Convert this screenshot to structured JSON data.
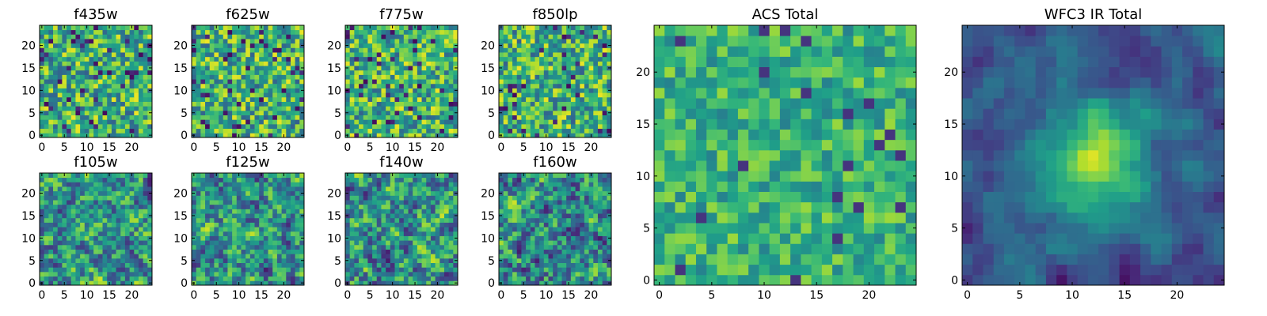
{
  "chart_data": [
    {
      "type": "heatmap",
      "title": "f435w",
      "colormap": "viridis",
      "grid": false,
      "xlim": [
        0,
        24
      ],
      "ylim": [
        0,
        24
      ],
      "x_ticks": [
        0,
        5,
        10,
        15,
        20
      ],
      "y_ticks": [
        0,
        5,
        10,
        15,
        20
      ],
      "x_tick_labels": [
        "0",
        "5",
        "10",
        "15",
        "20"
      ],
      "y_tick_labels": [
        "0",
        "5",
        "10",
        "15",
        "20"
      ],
      "pattern": "noise",
      "seed": 11,
      "contrast": 0.95
    },
    {
      "type": "heatmap",
      "title": "f625w",
      "colormap": "viridis",
      "grid": false,
      "xlim": [
        0,
        24
      ],
      "ylim": [
        0,
        24
      ],
      "x_ticks": [
        0,
        5,
        10,
        15,
        20
      ],
      "y_ticks": [
        0,
        5,
        10,
        15,
        20
      ],
      "x_tick_labels": [
        "0",
        "5",
        "10",
        "15",
        "20"
      ],
      "y_tick_labels": [
        "0",
        "5",
        "10",
        "15",
        "20"
      ],
      "pattern": "noise",
      "seed": 23,
      "contrast": 0.95
    },
    {
      "type": "heatmap",
      "title": "f775w",
      "colormap": "viridis",
      "grid": false,
      "xlim": [
        0,
        24
      ],
      "ylim": [
        0,
        24
      ],
      "x_ticks": [
        0,
        5,
        10,
        15,
        20
      ],
      "y_ticks": [
        0,
        5,
        10,
        15,
        20
      ],
      "x_tick_labels": [
        "0",
        "5",
        "10",
        "15",
        "20"
      ],
      "y_tick_labels": [
        "0",
        "5",
        "10",
        "15",
        "20"
      ],
      "pattern": "noise",
      "seed": 37,
      "contrast": 0.95
    },
    {
      "type": "heatmap",
      "title": "f850lp",
      "colormap": "viridis",
      "grid": false,
      "xlim": [
        0,
        24
      ],
      "ylim": [
        0,
        24
      ],
      "x_ticks": [
        0,
        5,
        10,
        15,
        20
      ],
      "y_ticks": [
        0,
        5,
        10,
        15,
        20
      ],
      "x_tick_labels": [
        "0",
        "5",
        "10",
        "15",
        "20"
      ],
      "y_tick_labels": [
        "0",
        "5",
        "10",
        "15",
        "20"
      ],
      "pattern": "noise",
      "seed": 41,
      "contrast": 0.95
    },
    {
      "type": "heatmap",
      "title": "f105w",
      "colormap": "viridis",
      "grid": false,
      "xlim": [
        0,
        24
      ],
      "ylim": [
        0,
        24
      ],
      "x_ticks": [
        0,
        5,
        10,
        15,
        20
      ],
      "y_ticks": [
        0,
        5,
        10,
        15,
        20
      ],
      "x_tick_labels": [
        "0",
        "5",
        "10",
        "15",
        "20"
      ],
      "y_tick_labels": [
        "0",
        "5",
        "10",
        "15",
        "20"
      ],
      "pattern": "smooth",
      "seed": 53,
      "contrast": 0.85
    },
    {
      "type": "heatmap",
      "title": "f125w",
      "colormap": "viridis",
      "grid": false,
      "xlim": [
        0,
        24
      ],
      "ylim": [
        0,
        24
      ],
      "x_ticks": [
        0,
        5,
        10,
        15,
        20
      ],
      "y_ticks": [
        0,
        5,
        10,
        15,
        20
      ],
      "x_tick_labels": [
        "0",
        "5",
        "10",
        "15",
        "20"
      ],
      "y_tick_labels": [
        "0",
        "5",
        "10",
        "15",
        "20"
      ],
      "pattern": "smooth",
      "seed": 67,
      "contrast": 0.85
    },
    {
      "type": "heatmap",
      "title": "f140w",
      "colormap": "viridis",
      "grid": false,
      "xlim": [
        0,
        24
      ],
      "ylim": [
        0,
        24
      ],
      "x_ticks": [
        0,
        5,
        10,
        15,
        20
      ],
      "y_ticks": [
        0,
        5,
        10,
        15,
        20
      ],
      "x_tick_labels": [
        "0",
        "5",
        "10",
        "15",
        "20"
      ],
      "y_tick_labels": [
        "0",
        "5",
        "10",
        "15",
        "20"
      ],
      "pattern": "smooth",
      "seed": 79,
      "contrast": 0.85
    },
    {
      "type": "heatmap",
      "title": "f160w",
      "colormap": "viridis",
      "grid": false,
      "xlim": [
        0,
        24
      ],
      "ylim": [
        0,
        24
      ],
      "x_ticks": [
        0,
        5,
        10,
        15,
        20
      ],
      "y_ticks": [
        0,
        5,
        10,
        15,
        20
      ],
      "x_tick_labels": [
        "0",
        "5",
        "10",
        "15",
        "20"
      ],
      "y_tick_labels": [
        "0",
        "5",
        "10",
        "15",
        "20"
      ],
      "pattern": "smooth",
      "seed": 83,
      "contrast": 0.85
    },
    {
      "type": "heatmap",
      "title": "ACS Total",
      "colormap": "viridis",
      "grid": false,
      "xlim": [
        0,
        24
      ],
      "ylim": [
        0,
        24
      ],
      "x_ticks": [
        0,
        5,
        10,
        15,
        20
      ],
      "y_ticks": [
        0,
        5,
        10,
        15,
        20
      ],
      "x_tick_labels": [
        "0",
        "5",
        "10",
        "15",
        "20"
      ],
      "y_tick_labels": [
        "0",
        "5",
        "10",
        "15",
        "20"
      ],
      "pattern": "noise_bright",
      "seed": 97,
      "contrast": 0.7
    },
    {
      "type": "heatmap",
      "title": "WFC3 IR Total",
      "colormap": "viridis",
      "grid": false,
      "xlim": [
        0,
        24
      ],
      "ylim": [
        0,
        24
      ],
      "x_ticks": [
        0,
        5,
        10,
        15,
        20
      ],
      "y_ticks": [
        0,
        5,
        10,
        15,
        20
      ],
      "x_tick_labels": [
        "0",
        "5",
        "10",
        "15",
        "20"
      ],
      "y_tick_labels": [
        "0",
        "5",
        "10",
        "15",
        "20"
      ],
      "pattern": "central_source",
      "seed": 101,
      "contrast": 0.9
    }
  ]
}
